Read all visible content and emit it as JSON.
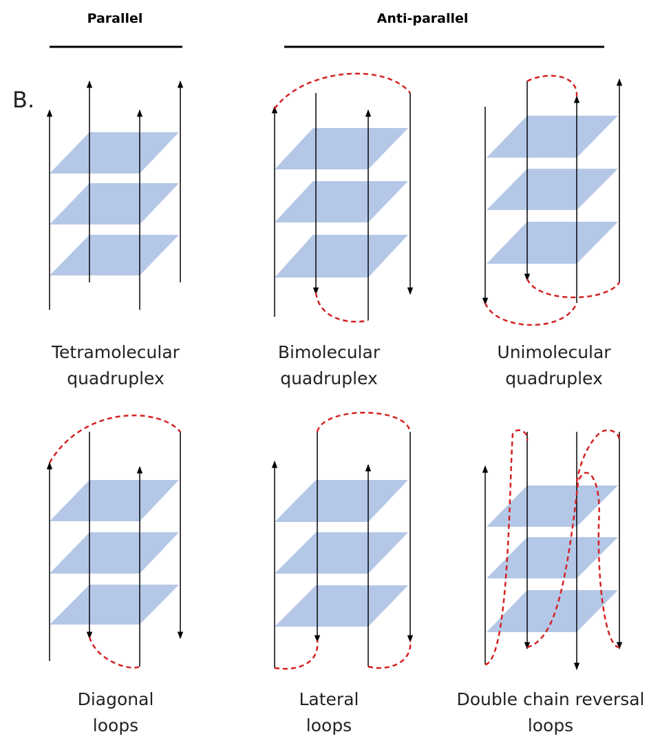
{
  "headers": [
    "Parallel",
    "Anti-parallel"
  ],
  "panel_label": "B.",
  "panels": [
    {
      "caption": [
        "Tetramolecular",
        "quadruplex"
      ]
    },
    {
      "caption": [
        "Bimolecular",
        "quadruplex"
      ]
    },
    {
      "caption": [
        "Unimolecular",
        "quadruplex"
      ]
    },
    {
      "caption": [
        "Diagonal",
        "loops"
      ]
    },
    {
      "caption": [
        "Lateral",
        "loops"
      ]
    },
    {
      "caption": [
        "Double chain reversal",
        "loops"
      ]
    }
  ]
}
